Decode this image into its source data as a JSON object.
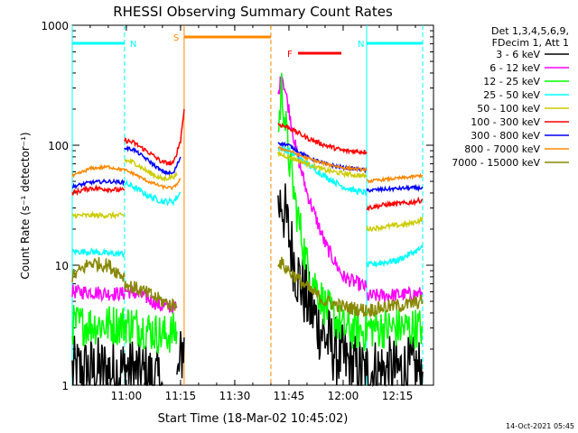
{
  "chart_data": {
    "type": "line",
    "title": "RHESSI Observing Summary Count Rates",
    "xlabel": "Start Time (18-Mar-02 10:45:02)",
    "ylabel": "Count Rate (s⁻¹ detector⁻¹)",
    "y_scale": "log",
    "ylim": [
      1,
      1000
    ],
    "xlim": [
      "10:45:02",
      "12:25:00"
    ],
    "x_ticks": [
      "11:00",
      "11:15",
      "11:30",
      "11:45",
      "12:00",
      "12:15"
    ],
    "y_ticks": [
      "1",
      "10",
      "100",
      "1000"
    ],
    "timestamp": "14-Oct-2021 05:45",
    "legend": {
      "placement": "right",
      "header": [
        "Det 1,3,4,5,6,9,",
        "FDecim 1, Att 1"
      ],
      "entries": [
        {
          "label": "3 - 6 keV",
          "color": "#000000"
        },
        {
          "label": "6 - 12 keV",
          "color": "#ff00ff"
        },
        {
          "label": "12 - 25 keV",
          "color": "#00ff00"
        },
        {
          "label": "25 - 50 keV",
          "color": "#00ffff"
        },
        {
          "label": "50 - 100 keV",
          "color": "#cccc00"
        },
        {
          "label": "100 - 300 keV",
          "color": "#ff0000"
        },
        {
          "label": "300 - 800 keV",
          "color": "#0000ff"
        },
        {
          "label": "800 - 7000 keV",
          "color": "#ff8800"
        },
        {
          "label": "7000 - 15000 keV",
          "color": "#888800"
        }
      ]
    },
    "flag_bars": [
      {
        "label": "N",
        "color": "#00ffff",
        "start": "10:45:02",
        "end": "10:59:30"
      },
      {
        "label": "N",
        "color": "#00ffff",
        "start": "12:06:30",
        "end": "12:22:00"
      },
      {
        "label": "S",
        "color": "#ff8800",
        "start": "11:16:00",
        "end": "11:40:00"
      },
      {
        "label": "F",
        "color": "#ff0000",
        "start": "11:47:30",
        "end": "11:59:30"
      }
    ],
    "night_markers": [
      {
        "time": "10:45:02",
        "color": "#00ffff",
        "style": "solid"
      },
      {
        "time": "10:59:30",
        "color": "#00ffff",
        "style": "dashed"
      },
      {
        "time": "11:16:00",
        "color": "#ff8800",
        "style": "solid"
      },
      {
        "time": "11:40:00",
        "color": "#ff8800",
        "style": "dashed"
      },
      {
        "time": "12:06:30",
        "color": "#00ffff",
        "style": "solid"
      },
      {
        "time": "12:22:00",
        "color": "#00ffff",
        "style": "dashed"
      }
    ],
    "series": [
      {
        "name": "3 - 6 keV",
        "color": "#000000",
        "noise": 0.6,
        "segments": [
          [
            [
              "10:45:02",
              1.3
            ],
            [
              "10:55:00",
              1.3
            ],
            [
              "10:59:30",
              1.3
            ]
          ],
          [
            [
              "10:59:30",
              1.4
            ],
            [
              "11:05:00",
              1.2
            ],
            [
              "11:10:00",
              1.0
            ]
          ],
          [
            [
              "11:14:00",
              1.0
            ],
            [
              "11:16:00",
              2.5
            ]
          ],
          [
            [
              "11:42:00",
              30
            ],
            [
              "11:43:00",
              35
            ],
            [
              "11:45:00",
              18
            ],
            [
              "11:47:00",
              9
            ],
            [
              "11:50:00",
              5
            ],
            [
              "11:55:00",
              2.5
            ],
            [
              "12:00:00",
              1.6
            ],
            [
              "12:06:30",
              1.2
            ]
          ],
          [
            [
              "12:06:30",
              1.3
            ],
            [
              "12:22:00",
              1.3
            ]
          ]
        ]
      },
      {
        "name": "6 - 12 keV",
        "color": "#ff00ff",
        "noise": 0.12,
        "segments": [
          [
            [
              "10:45:02",
              6
            ],
            [
              "10:50:00",
              6
            ],
            [
              "10:55:00",
              5.8
            ],
            [
              "10:59:30",
              5.8
            ]
          ],
          [
            [
              "10:59:30",
              6.2
            ],
            [
              "11:05:00",
              5.5
            ],
            [
              "11:10:00",
              4.5
            ],
            [
              "11:14:00",
              4.5
            ]
          ],
          [
            [
              "11:42:00",
              250
            ],
            [
              "11:43:00",
              400
            ],
            [
              "11:45:00",
              200
            ],
            [
              "11:47:00",
              90
            ],
            [
              "11:50:00",
              40
            ],
            [
              "11:55:00",
              15
            ],
            [
              "12:00:00",
              8
            ],
            [
              "12:06:30",
              6.5
            ]
          ],
          [
            [
              "12:06:30",
              5.5
            ],
            [
              "12:22:00",
              5.8
            ]
          ]
        ]
      },
      {
        "name": "12 - 25 keV",
        "color": "#00ff00",
        "noise": 0.35,
        "segments": [
          [
            [
              "10:45:02",
              3.2
            ],
            [
              "10:59:30",
              3.2
            ]
          ],
          [
            [
              "10:59:30",
              3.3
            ],
            [
              "11:05:00",
              3.0
            ],
            [
              "11:10:00",
              2.6
            ],
            [
              "11:14:00",
              2.8
            ]
          ],
          [
            [
              "11:42:00",
              120
            ],
            [
              "11:43:00",
              300
            ],
            [
              "11:45:00",
              80
            ],
            [
              "11:47:00",
              30
            ],
            [
              "11:50:00",
              10
            ],
            [
              "11:55:00",
              4.5
            ],
            [
              "12:00:00",
              3
            ],
            [
              "12:06:30",
              2.8
            ]
          ],
          [
            [
              "12:06:30",
              3.0
            ],
            [
              "12:22:00",
              3.0
            ]
          ]
        ]
      },
      {
        "name": "25 - 50 keV",
        "color": "#00ffff",
        "noise": 0.05,
        "segments": [
          [
            [
              "10:45:02",
              13
            ],
            [
              "10:50:00",
              13
            ],
            [
              "10:55:00",
              12.5
            ],
            [
              "10:59:30",
              12.5
            ]
          ],
          [
            [
              "10:59:30",
              48
            ],
            [
              "11:02:00",
              45
            ],
            [
              "11:06:00",
              38
            ],
            [
              "11:10:00",
              34
            ],
            [
              "11:13:00",
              34
            ],
            [
              "11:15:00",
              40
            ]
          ],
          [
            [
              "11:42:00",
              95
            ],
            [
              "11:45:00",
              90
            ],
            [
              "11:50:00",
              70
            ],
            [
              "11:55:00",
              55
            ],
            [
              "12:00:00",
              45
            ],
            [
              "12:03:00",
              42
            ],
            [
              "12:06:30",
              40
            ]
          ],
          [
            [
              "12:06:30",
              10
            ],
            [
              "12:15:00",
              11
            ],
            [
              "12:22:00",
              14
            ]
          ]
        ]
      },
      {
        "name": "50 - 100 keV",
        "color": "#cccc00",
        "noise": 0.04,
        "segments": [
          [
            [
              "10:45:02",
              26
            ],
            [
              "10:59:30",
              26
            ]
          ],
          [
            [
              "10:59:30",
              75
            ],
            [
              "11:02:00",
              72
            ],
            [
              "11:06:00",
              60
            ],
            [
              "11:10:00",
              52
            ],
            [
              "11:14:00",
              56
            ]
          ],
          [
            [
              "11:42:00",
              85
            ],
            [
              "11:45:00",
              80
            ],
            [
              "11:50:00",
              70
            ],
            [
              "11:55:00",
              62
            ],
            [
              "12:00:00",
              58
            ],
            [
              "12:06:30",
              55
            ]
          ],
          [
            [
              "12:06:30",
              20
            ],
            [
              "12:12:00",
              21
            ],
            [
              "12:18:00",
              22
            ],
            [
              "12:22:00",
              24
            ]
          ]
        ]
      },
      {
        "name": "100 - 300 keV",
        "color": "#ff0000",
        "noise": 0.04,
        "segments": [
          [
            [
              "10:45:02",
              40
            ],
            [
              "10:50:00",
              44
            ],
            [
              "10:55:00",
              43
            ],
            [
              "10:59:30",
              42
            ]
          ],
          [
            [
              "10:59:30",
              110
            ],
            [
              "11:02:00",
              105
            ],
            [
              "11:06:00",
              88
            ],
            [
              "11:10:00",
              72
            ],
            [
              "11:13:00",
              70
            ],
            [
              "11:15:00",
              110
            ],
            [
              "11:16:00",
              200
            ]
          ],
          [
            [
              "11:42:00",
              150
            ],
            [
              "11:45:00",
              140
            ],
            [
              "11:50:00",
              115
            ],
            [
              "11:55:00",
              100
            ],
            [
              "12:00:00",
              90
            ],
            [
              "12:06:30",
              88
            ]
          ],
          [
            [
              "12:06:30",
              30
            ],
            [
              "12:12:00",
              32
            ],
            [
              "12:18:00",
              33
            ],
            [
              "12:22:00",
              35
            ]
          ]
        ]
      },
      {
        "name": "300 - 800 keV",
        "color": "#0000ff",
        "noise": 0.03,
        "segments": [
          [
            [
              "10:45:02",
              45
            ],
            [
              "10:50:00",
              49
            ],
            [
              "10:55:00",
              50
            ],
            [
              "10:59:30",
              49
            ]
          ],
          [
            [
              "10:59:30",
              95
            ],
            [
              "11:02:00",
              92
            ],
            [
              "11:06:00",
              75
            ],
            [
              "11:10:00",
              60
            ],
            [
              "11:13:00",
              58
            ],
            [
              "11:15:00",
              80
            ]
          ],
          [
            [
              "11:42:00",
              105
            ],
            [
              "11:45:00",
              100
            ],
            [
              "11:50:00",
              80
            ],
            [
              "11:55:00",
              70
            ],
            [
              "12:00:00",
              65
            ],
            [
              "12:06:30",
              62
            ]
          ],
          [
            [
              "12:06:30",
              42
            ],
            [
              "12:12:00",
              43
            ],
            [
              "12:18:00",
              44
            ],
            [
              "12:22:00",
              44
            ]
          ]
        ]
      },
      {
        "name": "800 - 7000 keV",
        "color": "#ff8800",
        "noise": 0.025,
        "segments": [
          [
            [
              "10:45:02",
              55
            ],
            [
              "10:50:00",
              64
            ],
            [
              "10:55:00",
              66
            ],
            [
              "10:59:30",
              62
            ]
          ],
          [
            [
              "10:59:30",
              62
            ],
            [
              "11:02:00",
              58
            ],
            [
              "11:06:00",
              50
            ],
            [
              "11:10:00",
              45
            ],
            [
              "11:13:00",
              44
            ],
            [
              "11:15:00",
              52
            ]
          ],
          [
            [
              "11:42:00",
              95
            ],
            [
              "11:45:00",
              90
            ],
            [
              "11:50:00",
              78
            ],
            [
              "11:55:00",
              70
            ],
            [
              "12:00:00",
              65
            ],
            [
              "12:06:30",
              62
            ]
          ],
          [
            [
              "12:06:30",
              50
            ],
            [
              "12:12:00",
              52
            ],
            [
              "12:18:00",
              54
            ],
            [
              "12:22:00",
              56
            ]
          ]
        ]
      },
      {
        "name": "7000 - 15000 keV",
        "color": "#888800",
        "noise": 0.12,
        "segments": [
          [
            [
              "10:45:02",
              8
            ],
            [
              "10:50:00",
              10.5
            ],
            [
              "10:55:00",
              10
            ],
            [
              "10:59:30",
              8
            ]
          ],
          [
            [
              "10:59:30",
              7
            ],
            [
              "11:05:00",
              6
            ],
            [
              "11:10:00",
              5
            ],
            [
              "11:14:00",
              4.5
            ]
          ],
          [
            [
              "11:42:00",
              11
            ],
            [
              "11:45:00",
              9
            ],
            [
              "11:50:00",
              6.5
            ],
            [
              "11:55:00",
              5
            ],
            [
              "12:00:00",
              4.5
            ],
            [
              "12:06:30",
              4.2
            ]
          ],
          [
            [
              "12:06:30",
              4.2
            ],
            [
              "12:12:00",
              4.5
            ],
            [
              "12:18:00",
              4.7
            ],
            [
              "12:22:00",
              5
            ]
          ]
        ]
      }
    ]
  }
}
